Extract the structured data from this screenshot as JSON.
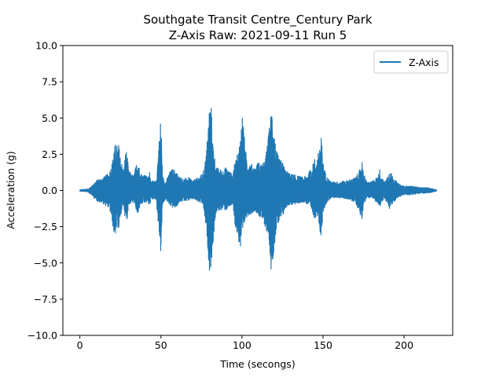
{
  "chart_data": {
    "type": "line",
    "title": "Southgate Transit Centre_Century Park",
    "subtitle": "Z-Axis Raw: 2021-09-11 Run 5",
    "xlabel": "Time (secongs)",
    "ylabel": "Acceleration (g)",
    "xlim": [
      -10.5,
      230
    ],
    "ylim": [
      -10.0,
      10.0
    ],
    "xticks": [
      0,
      50,
      100,
      150,
      200
    ],
    "xtick_labels": [
      "0",
      "50",
      "100",
      "150",
      "200"
    ],
    "yticks": [
      -10.0,
      -7.5,
      -5.0,
      -2.5,
      0.0,
      2.5,
      5.0,
      7.5,
      10.0
    ],
    "ytick_labels": [
      "−10.0",
      "−7.5",
      "−5.0",
      "−2.5",
      "0.0",
      "2.5",
      "5.0",
      "7.5",
      "10.0"
    ],
    "grid": false,
    "legend": {
      "position": "top-right"
    },
    "series": [
      {
        "name": "Z-Axis",
        "color": "#1f77b4",
        "t_range": [
          0,
          220
        ],
        "envelope_upper": [
          [
            0,
            0.05
          ],
          [
            5,
            0.1
          ],
          [
            8,
            0.4
          ],
          [
            10,
            0.7
          ],
          [
            14,
            0.9
          ],
          [
            18,
            1.2
          ],
          [
            20,
            2.0
          ],
          [
            21,
            3.0
          ],
          [
            22,
            3.2
          ],
          [
            23,
            3.1
          ],
          [
            24,
            3.2
          ],
          [
            25,
            2.4
          ],
          [
            27,
            1.3
          ],
          [
            28,
            2.6
          ],
          [
            29,
            2.8
          ],
          [
            30,
            1.4
          ],
          [
            33,
            1.0
          ],
          [
            35,
            1.9
          ],
          [
            36,
            2.3
          ],
          [
            37,
            1.2
          ],
          [
            40,
            1.1
          ],
          [
            42,
            0.9
          ],
          [
            43,
            1.3
          ],
          [
            44,
            0.7
          ],
          [
            47,
            0.6
          ],
          [
            50,
            5.3
          ],
          [
            51,
            1.0
          ],
          [
            53,
            0.6
          ],
          [
            55,
            1.2
          ],
          [
            57,
            1.5
          ],
          [
            59,
            1.4
          ],
          [
            61,
            1.0
          ],
          [
            64,
            0.8
          ],
          [
            67,
            0.9
          ],
          [
            70,
            0.7
          ],
          [
            73,
            0.9
          ],
          [
            76,
            1.2
          ],
          [
            78,
            2.6
          ],
          [
            80,
            6.1
          ],
          [
            81,
            5.9
          ],
          [
            82,
            3.4
          ],
          [
            83,
            2.5
          ],
          [
            84,
            1.6
          ],
          [
            86,
            1.5
          ],
          [
            88,
            1.4
          ],
          [
            90,
            1.6
          ],
          [
            92,
            1.4
          ],
          [
            94,
            1.1
          ],
          [
            96,
            2.1
          ],
          [
            98,
            2.8
          ],
          [
            99,
            3.8
          ],
          [
            100,
            5.5
          ],
          [
            101,
            4.6
          ],
          [
            102,
            2.8
          ],
          [
            104,
            2.0
          ],
          [
            106,
            1.8
          ],
          [
            108,
            1.6
          ],
          [
            110,
            2.0
          ],
          [
            112,
            1.8
          ],
          [
            114,
            2.0
          ],
          [
            116,
            3.5
          ],
          [
            117,
            4.5
          ],
          [
            118,
            5.6
          ],
          [
            119,
            6.0
          ],
          [
            120,
            4.0
          ],
          [
            121,
            2.8
          ],
          [
            123,
            2.2
          ],
          [
            125,
            2.0
          ],
          [
            127,
            1.4
          ],
          [
            129,
            1.2
          ],
          [
            132,
            1.1
          ],
          [
            135,
            1.0
          ],
          [
            138,
            0.9
          ],
          [
            141,
            1.2
          ],
          [
            144,
            1.9
          ],
          [
            145,
            2.3
          ],
          [
            146,
            2.0
          ],
          [
            148,
            3.2
          ],
          [
            149,
            3.7
          ],
          [
            150,
            2.0
          ],
          [
            152,
            1.0
          ],
          [
            155,
            0.6
          ],
          [
            160,
            0.6
          ],
          [
            165,
            0.7
          ],
          [
            170,
            0.9
          ],
          [
            173,
            1.5
          ],
          [
            174,
            2.2
          ],
          [
            175,
            1.2
          ],
          [
            177,
            0.6
          ],
          [
            180,
            0.6
          ],
          [
            184,
            1.0
          ],
          [
            185,
            1.5
          ],
          [
            186,
            0.9
          ],
          [
            188,
            0.6
          ],
          [
            189,
            0.8
          ],
          [
            190,
            1.1
          ],
          [
            191,
            1.4
          ],
          [
            193,
            1.0
          ],
          [
            196,
            0.5
          ],
          [
            200,
            0.3
          ],
          [
            205,
            0.3
          ],
          [
            210,
            0.2
          ],
          [
            215,
            0.2
          ],
          [
            218,
            0.1
          ],
          [
            220,
            0.05
          ]
        ],
        "envelope_lower": [
          [
            0,
            -0.05
          ],
          [
            5,
            -0.1
          ],
          [
            8,
            -0.4
          ],
          [
            10,
            -0.7
          ],
          [
            14,
            -0.9
          ],
          [
            18,
            -1.2
          ],
          [
            20,
            -2.2
          ],
          [
            21,
            -3.1
          ],
          [
            22,
            -3.0
          ],
          [
            23,
            -2.5
          ],
          [
            24,
            -2.9
          ],
          [
            25,
            -1.8
          ],
          [
            27,
            -1.0
          ],
          [
            28,
            -2.0
          ],
          [
            29,
            -2.2
          ],
          [
            30,
            -1.0
          ],
          [
            33,
            -0.8
          ],
          [
            35,
            -1.5
          ],
          [
            36,
            -1.9
          ],
          [
            37,
            -1.0
          ],
          [
            40,
            -0.9
          ],
          [
            42,
            -0.8
          ],
          [
            43,
            -1.1
          ],
          [
            44,
            -0.6
          ],
          [
            47,
            -0.6
          ],
          [
            50,
            -4.5
          ],
          [
            51,
            -1.0
          ],
          [
            53,
            -0.6
          ],
          [
            55,
            -1.0
          ],
          [
            57,
            -1.2
          ],
          [
            59,
            -1.2
          ],
          [
            61,
            -0.9
          ],
          [
            64,
            -0.7
          ],
          [
            67,
            -0.7
          ],
          [
            70,
            -0.6
          ],
          [
            73,
            -0.8
          ],
          [
            76,
            -1.0
          ],
          [
            78,
            -2.8
          ],
          [
            80,
            -5.6
          ],
          [
            81,
            -5.3
          ],
          [
            82,
            -4.0
          ],
          [
            83,
            -2.5
          ],
          [
            84,
            -1.6
          ],
          [
            86,
            -1.4
          ],
          [
            88,
            -1.3
          ],
          [
            90,
            -1.4
          ],
          [
            92,
            -1.2
          ],
          [
            94,
            -1.0
          ],
          [
            96,
            -2.6
          ],
          [
            98,
            -3.6
          ],
          [
            99,
            -4.2
          ],
          [
            100,
            -3.8
          ],
          [
            101,
            -3.0
          ],
          [
            102,
            -2.0
          ],
          [
            104,
            -1.7
          ],
          [
            106,
            -1.6
          ],
          [
            108,
            -1.4
          ],
          [
            110,
            -1.7
          ],
          [
            112,
            -2.0
          ],
          [
            114,
            -2.4
          ],
          [
            116,
            -3.2
          ],
          [
            117,
            -3.8
          ],
          [
            118,
            -5.6
          ],
          [
            119,
            -4.8
          ],
          [
            120,
            -3.9
          ],
          [
            121,
            -2.8
          ],
          [
            123,
            -2.2
          ],
          [
            125,
            -1.9
          ],
          [
            127,
            -1.2
          ],
          [
            129,
            -1.0
          ],
          [
            132,
            -1.0
          ],
          [
            135,
            -0.9
          ],
          [
            138,
            -0.8
          ],
          [
            141,
            -1.0
          ],
          [
            144,
            -1.7
          ],
          [
            145,
            -2.0
          ],
          [
            146,
            -1.6
          ],
          [
            148,
            -2.9
          ],
          [
            149,
            -3.2
          ],
          [
            150,
            -1.6
          ],
          [
            152,
            -0.9
          ],
          [
            155,
            -0.5
          ],
          [
            160,
            -0.5
          ],
          [
            165,
            -0.6
          ],
          [
            170,
            -0.8
          ],
          [
            173,
            -1.7
          ],
          [
            174,
            -2.0
          ],
          [
            175,
            -1.0
          ],
          [
            177,
            -0.5
          ],
          [
            180,
            -0.5
          ],
          [
            184,
            -0.9
          ],
          [
            185,
            -1.2
          ],
          [
            186,
            -0.8
          ],
          [
            188,
            -0.6
          ],
          [
            189,
            -0.8
          ],
          [
            190,
            -1.0
          ],
          [
            191,
            -1.3
          ],
          [
            193,
            -0.9
          ],
          [
            196,
            -0.5
          ],
          [
            200,
            -0.3
          ],
          [
            205,
            -0.3
          ],
          [
            210,
            -0.2
          ],
          [
            215,
            -0.2
          ],
          [
            218,
            -0.1
          ],
          [
            220,
            -0.05
          ]
        ]
      }
    ]
  }
}
